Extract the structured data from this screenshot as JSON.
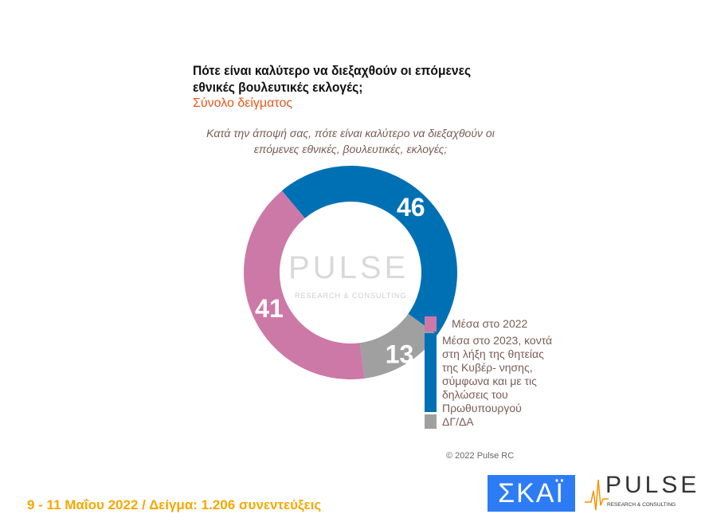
{
  "title": "Πότε είναι καλύτερο να διεξαχθούν οι επόμενες εθνικές βουλευτικές εκλογές;",
  "subtitle": "Σύνολο δείγματος",
  "question": "Κατά την άποψή σας, πότε είναι καλύτερο να διεξαχθούν οι επόμενες εθνικές, βουλευτικές, εκλογές;",
  "chart_data": {
    "type": "pie",
    "variant": "donut",
    "categories": [
      "Μέσα στο 2023, κοντά στη λήξη της θητείας της Κυβέρ- νησης, σύμφωνα και με τις δηλώσεις του Πρωθυπουργού",
      "ΔΓ/ΔΑ",
      "Μέσα στο 2022"
    ],
    "values": [
      46,
      13,
      41
    ],
    "colors": [
      "#0070b4",
      "#a0a0a0",
      "#cc79a7"
    ],
    "legend": [
      {
        "label": "Μέσα στο 2022",
        "color": "#cc79a7"
      },
      {
        "label": "Μέσα στο 2023, κοντά στη λήξη της θητείας της Κυβέρ- νησης, σύμφωνα και με τις δηλώσεις του Πρωθυπουργού",
        "color": "#0070b4"
      },
      {
        "label": "ΔΓ/ΔΑ",
        "color": "#a0a0a0"
      }
    ],
    "legend_position": "right"
  },
  "watermark": {
    "name": "PULSE",
    "tag": "RESEARCH & CONSULTING"
  },
  "copyright": "© 2022 Pulse RC",
  "footer": "9 - 11  Μαΐου  2022  /  Δείγμα:  1.206 συνεντεύξεις",
  "logos": {
    "skai": "ΣΚΑΪ",
    "pulse": "PULSE",
    "pulse_tag": "RESEARCH & CONSULTING"
  }
}
